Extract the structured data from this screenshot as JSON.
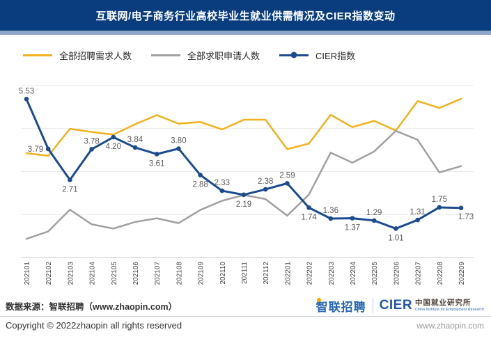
{
  "header": {
    "title": "互联网/电子商务行业高校毕业生就业供需情况及CIER指数变动",
    "bg_color": "#0a3d7d",
    "strip_color": "#8ea6c7"
  },
  "legend": [
    {
      "label": "全部招聘需求人数",
      "color": "#f2b11c",
      "marker": "line"
    },
    {
      "label": "全部求职申请人数",
      "color": "#a0a0a0",
      "marker": "line"
    },
    {
      "label": "CIER指数",
      "color": "#1b4b8f",
      "marker": "line-dot"
    }
  ],
  "chart_data": {
    "type": "line",
    "title": "互联网/电子商务行业高校毕业生就业供需情况及CIER指数变动",
    "categories": [
      "202101",
      "202102",
      "202103",
      "202104",
      "202105",
      "202106",
      "202107",
      "202108",
      "202109",
      "202110",
      "202111",
      "202112",
      "202201",
      "202202",
      "202203",
      "202204",
      "202205",
      "202206",
      "202207",
      "202208",
      "202209"
    ],
    "series": [
      {
        "name": "全部招聘需求人数",
        "color": "#f2b11c",
        "data_labels": false,
        "axis": "left (no tick labels shown)",
        "values_estimated_relative": [
          3.64,
          3.55,
          4.49,
          4.38,
          4.29,
          4.65,
          4.97,
          4.67,
          4.73,
          4.47,
          4.81,
          4.81,
          3.78,
          3.98,
          4.98,
          4.55,
          4.77,
          4.43,
          5.46,
          5.22,
          5.54
        ]
      },
      {
        "name": "全部求职申请人数",
        "color": "#a0a0a0",
        "data_labels": false,
        "axis": "left (no tick labels shown)",
        "values_estimated_relative": [
          0.65,
          0.91,
          1.67,
          1.16,
          1.01,
          1.24,
          1.37,
          1.2,
          1.66,
          1.98,
          2.18,
          2.04,
          1.46,
          2.2,
          3.66,
          3.31,
          3.7,
          4.42,
          4.11,
          2.97,
          3.19
        ]
      },
      {
        "name": "CIER指数",
        "color": "#1b4b8f",
        "marker": "circle",
        "data_labels": true,
        "values": [
          5.53,
          3.79,
          2.71,
          3.78,
          4.2,
          3.84,
          3.61,
          3.8,
          2.88,
          2.33,
          2.19,
          2.38,
          2.59,
          1.74,
          1.36,
          1.37,
          1.29,
          1.01,
          1.31,
          1.75,
          1.73
        ],
        "label_texts": [
          "5.53",
          "3.79",
          "2.71",
          "3.78",
          "4.20",
          "3.84",
          "3.61",
          "3.80",
          "2.88",
          "2.33",
          "2.19",
          "2.38",
          "2.59",
          "1.74",
          "1.36",
          "1.37",
          "1.29",
          "1.01",
          "1.31",
          "1.75",
          "1.73"
        ],
        "label_positions": [
          "above",
          "left",
          "below",
          "above",
          "below",
          "above",
          "below",
          "above",
          "below",
          "above",
          "below",
          "above",
          "above",
          "below",
          "above",
          "below",
          "above",
          "below",
          "above",
          "above",
          "below-right"
        ]
      }
    ],
    "value_axis": {
      "min": 0,
      "max": 6,
      "gridline_step": 1.5,
      "tick_labels_visible": false
    },
    "grid": true,
    "legend_position": "top-left",
    "x_tick_rotation_deg": -90
  },
  "footer": {
    "datasource": "数据来源：智联招聘（www.zhaopin.com）",
    "copyright": "Copyright © 2022zhaopin all rights reserved",
    "website": "www.zhaopin.com",
    "logo_zhaopin": "智联招聘",
    "logo_cier_acronym": "CIER",
    "logo_cier_cn": "中国就业研究所",
    "logo_cier_en": "China Institute for Employment Research"
  },
  "colors": {
    "header_bg": "#0a3d7d",
    "header_strip": "#8ea6c7",
    "series_demand": "#f2b11c",
    "series_apply": "#a0a0a0",
    "series_cier": "#1b4b8f",
    "data_label": "#5a5a5a",
    "tick_label": "#444444",
    "gridline": "#e9e9e9",
    "axis_line": "#c9c9c9"
  }
}
